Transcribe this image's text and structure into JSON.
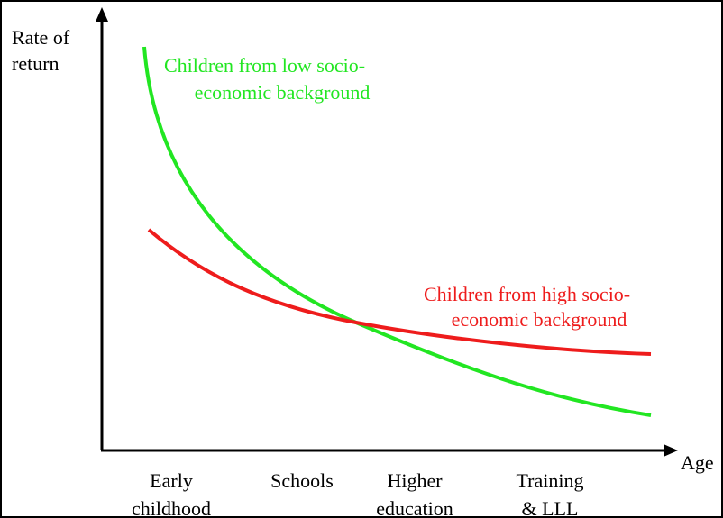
{
  "y_axis_label": [
    "Rate of",
    "return"
  ],
  "x_axis_label": "Age",
  "x_categories": [
    [
      "Early",
      "childhood"
    ],
    [
      "Schools"
    ],
    [
      "Higher",
      "education"
    ],
    [
      "Training",
      "& LLL"
    ]
  ],
  "curves": [
    {
      "label": [
        "Children from low socio-",
        "economic background"
      ],
      "color": "#22e622"
    },
    {
      "label": [
        "Children from high socio-",
        "economic background"
      ],
      "color": "#ee1c1c"
    }
  ]
}
